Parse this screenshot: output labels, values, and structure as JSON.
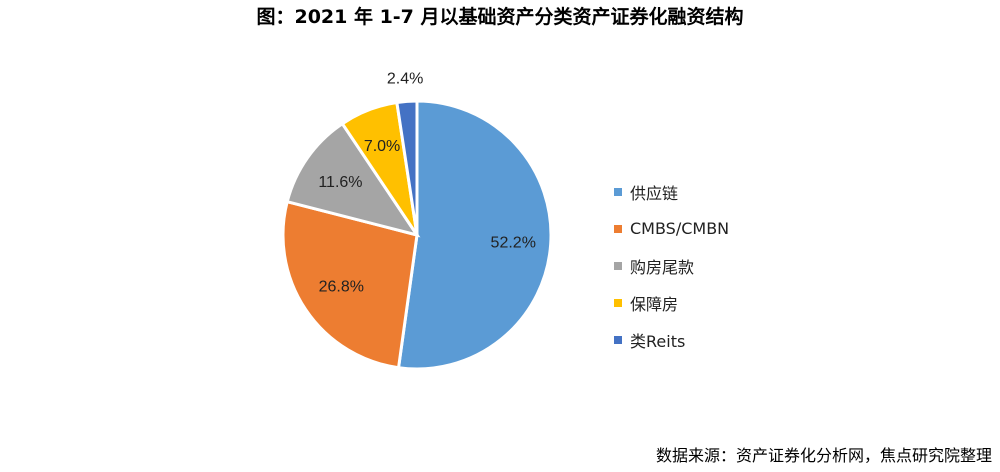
{
  "title": "图：2021 年 1-7 月以基础资产分类资产证券化融资结构",
  "source": "数据来源：资产证券化分析网，焦点研究院整理",
  "chart_data": {
    "type": "pie",
    "title": "图：2021 年 1-7 月以基础资产分类资产证券化融资结构",
    "legend_position": "right",
    "slices": [
      {
        "name": "供应链",
        "value": 52.2,
        "label": "52.2%",
        "color": "#5B9BD5"
      },
      {
        "name": "CMBS/CMBN",
        "value": 26.8,
        "label": "26.8%",
        "color": "#ED7D31"
      },
      {
        "name": "购房尾款",
        "value": 11.6,
        "label": "11.6%",
        "color": "#A5A5A5"
      },
      {
        "name": "保障房",
        "value": 7.0,
        "label": "7.0%",
        "color": "#FFC000"
      },
      {
        "name": "类Reits",
        "value": 2.4,
        "label": "2.4%",
        "color": "#4472C4"
      }
    ]
  }
}
